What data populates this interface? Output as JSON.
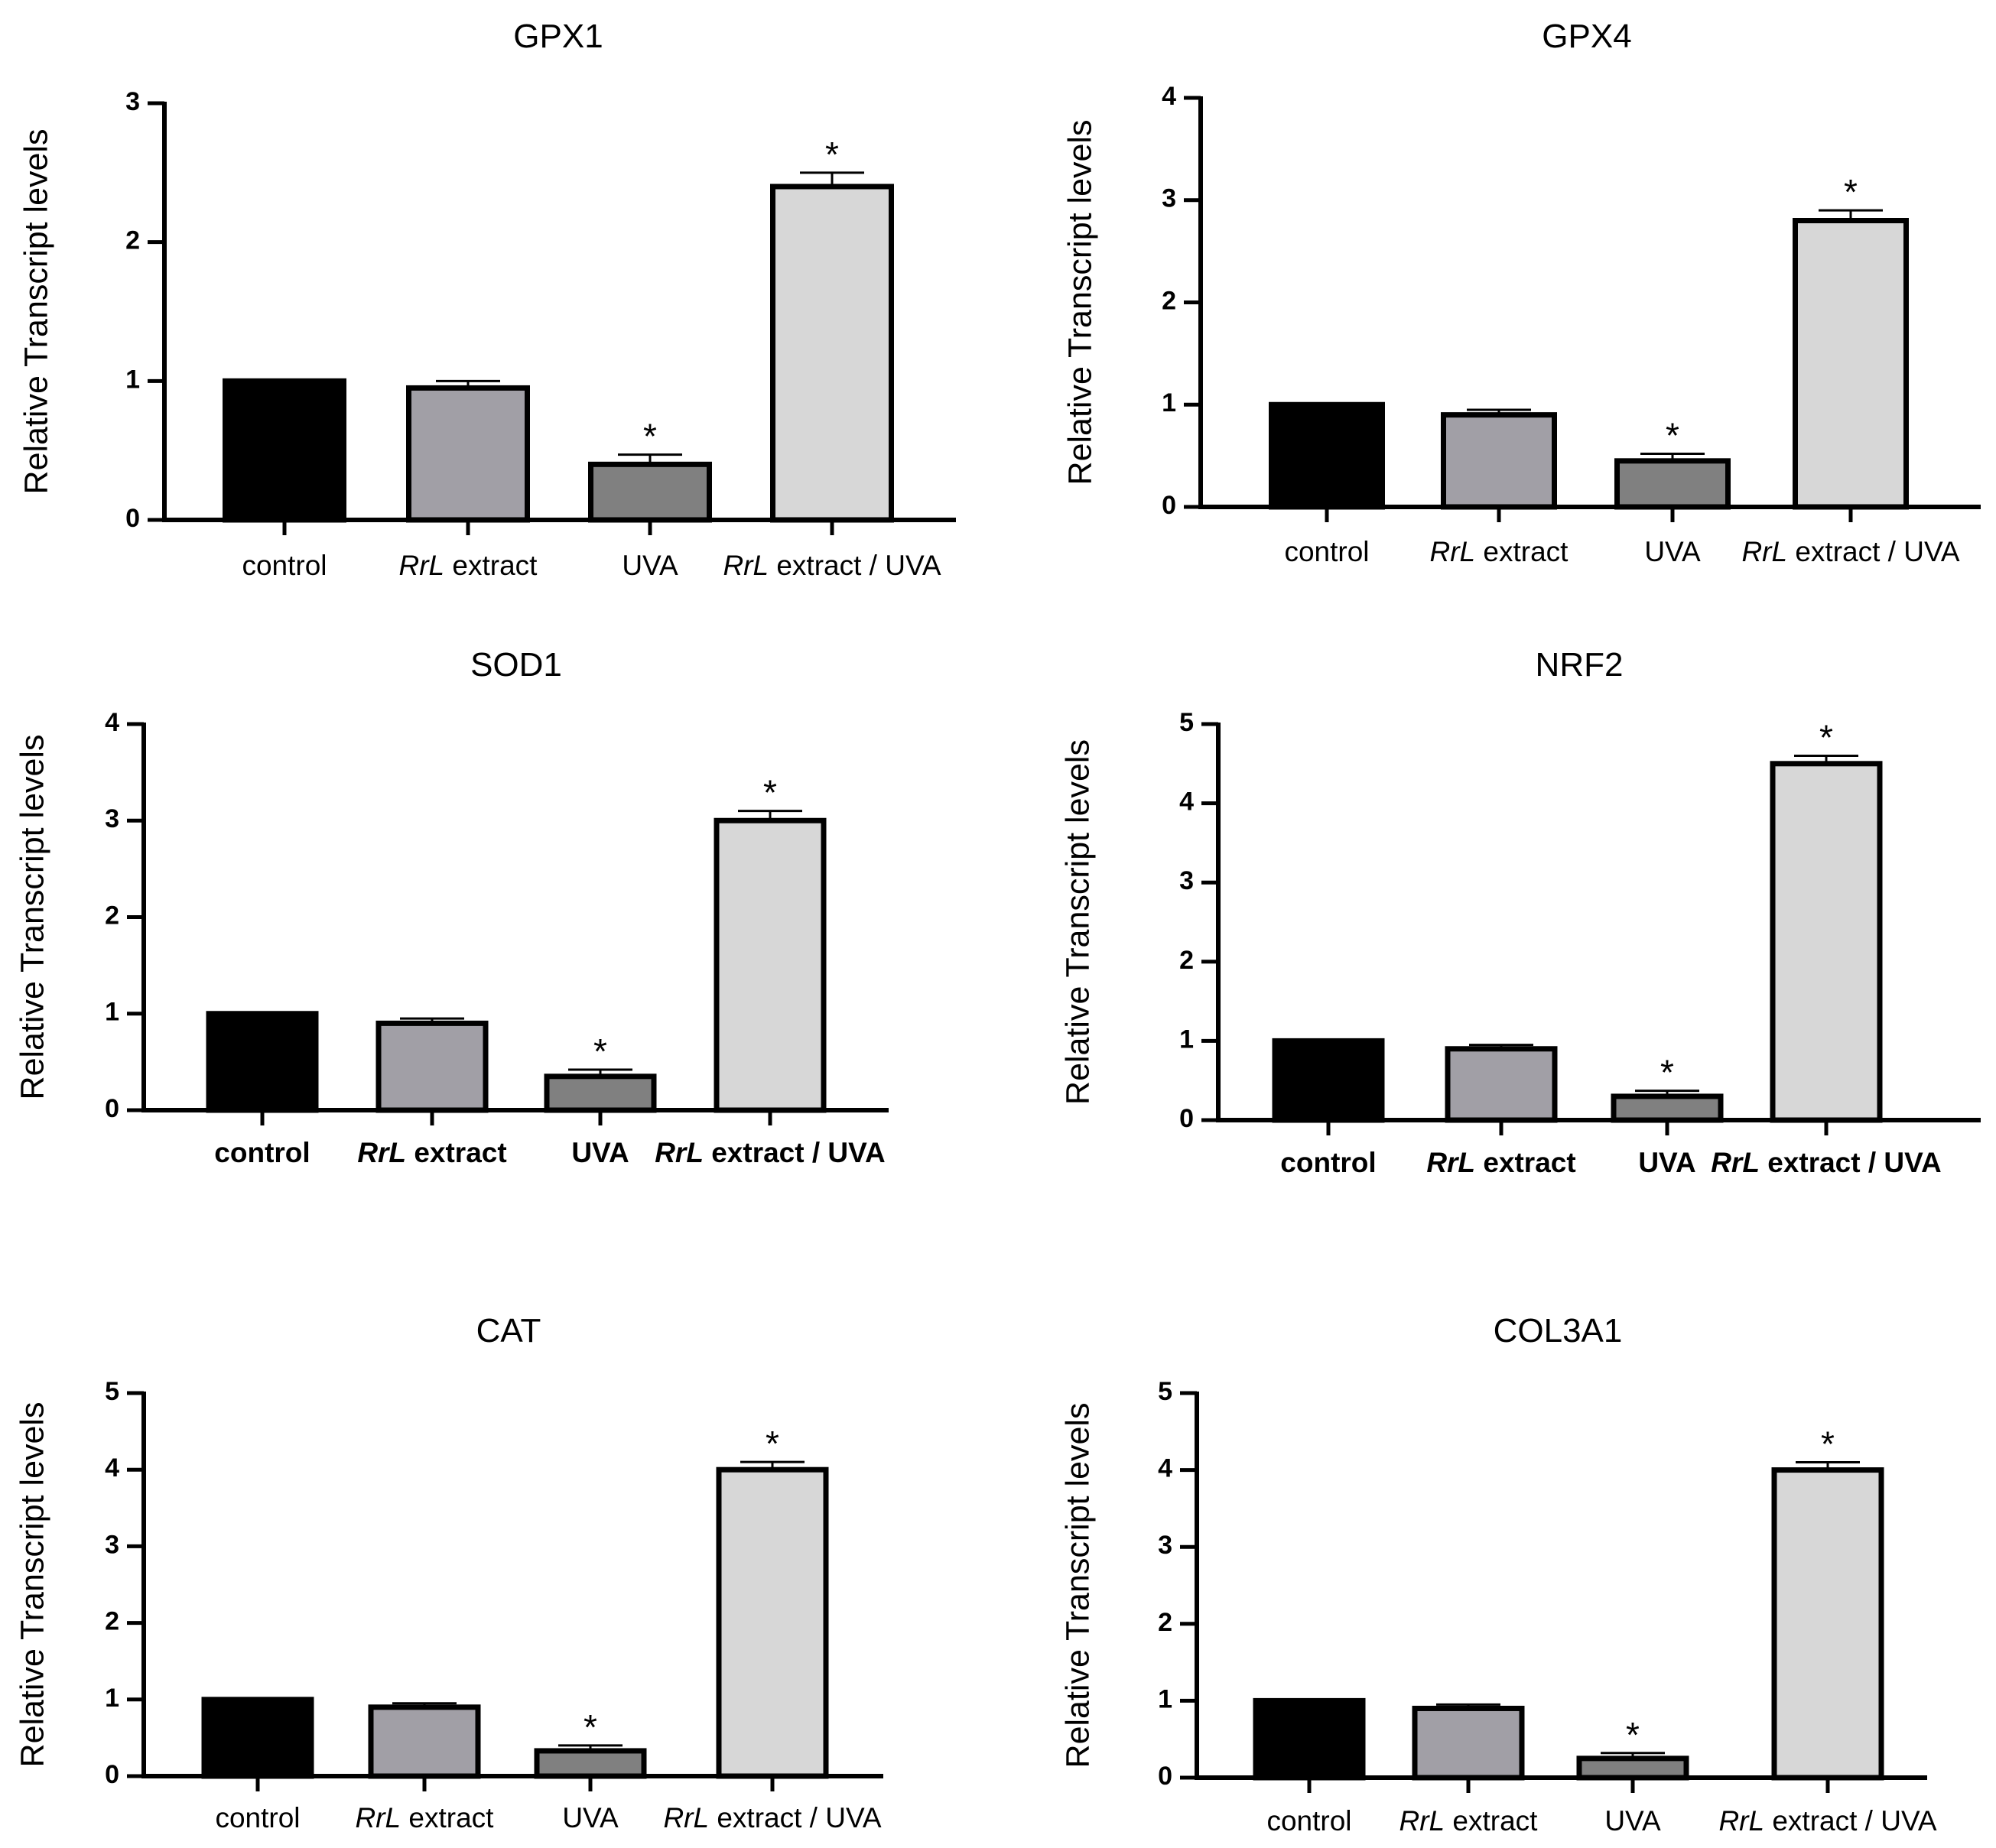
{
  "figure": {
    "ylabel": "Relative Transcript levels",
    "categories": [
      "control",
      "RrL extract",
      "UVA",
      "RrL extract / UVA"
    ],
    "colors": {
      "control": "#000000",
      "rrl_extract": "#a19fa6",
      "uva": "#808080",
      "rrl_uva": "#d7d7d7",
      "axis": "#000000"
    },
    "significance_marker": "*"
  },
  "chart_data": [
    {
      "type": "bar",
      "title": "GPX1",
      "xlabel": "",
      "ylabel": "Relative Transcript levels",
      "categories": [
        "control",
        "RrL extract",
        "UVA",
        "RrL extract / UVA"
      ],
      "values": [
        1.0,
        0.95,
        0.4,
        2.4
      ],
      "errors": [
        0.0,
        0.05,
        0.07,
        0.1
      ],
      "significant": [
        false,
        false,
        true,
        true
      ],
      "ylim": [
        0,
        3
      ],
      "yticks": [
        "0",
        "1",
        "2",
        "3"
      ],
      "bold_labels": false
    },
    {
      "type": "bar",
      "title": "GPX4",
      "xlabel": "",
      "ylabel": "Relative Transcript levels",
      "categories": [
        "control",
        "RrL extract",
        "UVA",
        "RrL extract / UVA"
      ],
      "values": [
        1.0,
        0.9,
        0.45,
        2.8
      ],
      "errors": [
        0.0,
        0.05,
        0.07,
        0.1
      ],
      "significant": [
        false,
        false,
        true,
        true
      ],
      "ylim": [
        0,
        4
      ],
      "yticks": [
        "0",
        "1",
        "2",
        "3",
        "4"
      ],
      "bold_labels": false
    },
    {
      "type": "bar",
      "title": "SOD1",
      "xlabel": "",
      "ylabel": "Relative Transcript levels",
      "categories": [
        "control",
        "RrL extract",
        "UVA",
        "RrL extract / UVA"
      ],
      "values": [
        1.0,
        0.9,
        0.35,
        3.0
      ],
      "errors": [
        0.0,
        0.05,
        0.07,
        0.1
      ],
      "significant": [
        false,
        false,
        true,
        true
      ],
      "ylim": [
        0,
        4
      ],
      "yticks": [
        "0",
        "1",
        "2",
        "3",
        "4"
      ],
      "bold_labels": true
    },
    {
      "type": "bar",
      "title": "NRF2",
      "xlabel": "",
      "ylabel": "Relative Transcript levels",
      "categories": [
        "control",
        "RrL extract",
        "UVA",
        "RrL extract / UVA"
      ],
      "values": [
        1.0,
        0.9,
        0.3,
        4.5
      ],
      "errors": [
        0.0,
        0.05,
        0.07,
        0.1
      ],
      "significant": [
        false,
        false,
        true,
        true
      ],
      "ylim": [
        0,
        5
      ],
      "yticks": [
        "0",
        "1",
        "2",
        "3",
        "4",
        "5"
      ],
      "bold_labels": true
    },
    {
      "type": "bar",
      "title": "CAT",
      "xlabel": "",
      "ylabel": "Relative Transcript levels",
      "categories": [
        "control",
        "RrL extract",
        "UVA",
        "RrL extract / UVA"
      ],
      "values": [
        1.0,
        0.9,
        0.33,
        4.0
      ],
      "errors": [
        0.0,
        0.05,
        0.07,
        0.1
      ],
      "significant": [
        false,
        false,
        true,
        true
      ],
      "ylim": [
        0,
        5
      ],
      "yticks": [
        "0",
        "1",
        "2",
        "3",
        "4",
        "5"
      ],
      "bold_labels": false
    },
    {
      "type": "bar",
      "title": "COL3A1",
      "xlabel": "",
      "ylabel": "Relative Transcript levels",
      "categories": [
        "control",
        "RrL extract",
        "UVA",
        "RrL extract / UVA"
      ],
      "values": [
        1.0,
        0.9,
        0.25,
        4.0
      ],
      "errors": [
        0.0,
        0.05,
        0.07,
        0.1
      ],
      "significant": [
        false,
        false,
        true,
        true
      ],
      "ylim": [
        0,
        5
      ],
      "yticks": [
        "0",
        "1",
        "2",
        "3",
        "4",
        "5"
      ],
      "bold_labels": false
    }
  ]
}
